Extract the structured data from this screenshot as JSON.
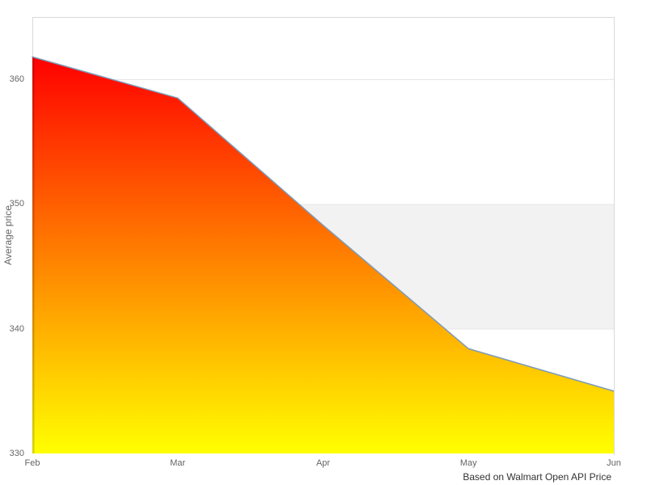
{
  "chart_data": {
    "type": "area",
    "title": "",
    "categories": [
      "Feb",
      "Mar",
      "Apr",
      "May",
      "Jun"
    ],
    "values": [
      361.8,
      358.5,
      348.3,
      338.4,
      335.0
    ],
    "xlabel": "",
    "ylabel": "Average price",
    "ylim": [
      330,
      365
    ],
    "yticks": [
      330,
      340,
      350,
      360
    ],
    "grid": "horizontal-only",
    "legend": "none",
    "markers": "none",
    "plot_band": {
      "from": 340,
      "to": 350,
      "color": "#f2f2f2"
    },
    "caption": "Based on Walmart Open API Price",
    "colors": {
      "area_gradient_top": "#ff0000",
      "area_gradient_bottom": "#ffff00",
      "area_edge_top": "#d40000",
      "area_edge_bottom": "#d4d400",
      "line": "#7d9bb9",
      "grid_line": "#e6e6e6",
      "border": "#d9d9d9",
      "tick_text": "#666666",
      "caption_text": "#333333",
      "background": "#ffffff"
    }
  }
}
